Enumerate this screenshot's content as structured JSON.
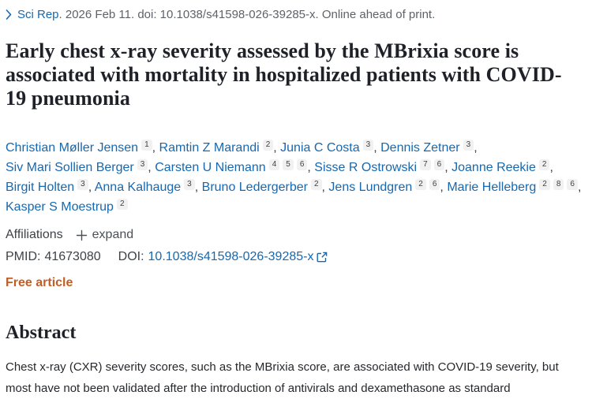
{
  "journal_bar": {
    "journal_link": "Sci Rep",
    "citation_text": ". 2026 Feb 11. doi: 10.1038/s41598-026-39285-x. Online ahead of print."
  },
  "title": "Early chest x-ray severity assessed by the MBrixia score is associated with mortality in hospitalized patients with COVID-19 pneumonia",
  "authors": [
    {
      "name": "Christian Møller Jensen",
      "sups": [
        "1"
      ]
    },
    {
      "name": "Ramtin Z Marandi",
      "sups": [
        "2"
      ]
    },
    {
      "name": "Junia C Costa",
      "sups": [
        "3"
      ]
    },
    {
      "name": "Dennis Zetner",
      "sups": [
        "3"
      ]
    },
    {
      "name": "Siv Mari Sollien Berger",
      "sups": [
        "3"
      ]
    },
    {
      "name": "Carsten U Niemann",
      "sups": [
        "4",
        "5",
        "6"
      ]
    },
    {
      "name": "Sisse R Ostrowski",
      "sups": [
        "7",
        "6"
      ]
    },
    {
      "name": "Joanne Reekie",
      "sups": [
        "2"
      ]
    },
    {
      "name": "Birgit Holten",
      "sups": [
        "3"
      ]
    },
    {
      "name": "Anna Kalhauge",
      "sups": [
        "3"
      ]
    },
    {
      "name": "Bruno Ledergerber",
      "sups": [
        "2"
      ]
    },
    {
      "name": "Jens Lundgren",
      "sups": [
        "2",
        "6"
      ]
    },
    {
      "name": "Marie Helleberg",
      "sups": [
        "2",
        "8",
        "6"
      ]
    },
    {
      "name": "Kasper S Moestrup",
      "sups": [
        "2"
      ]
    }
  ],
  "affiliations": {
    "label": "Affiliations",
    "expand_label": "expand"
  },
  "identifiers": {
    "pmid_label": "PMID:",
    "pmid": "41673080",
    "doi_label": "DOI:",
    "doi": "10.1038/s41598-026-39285-x"
  },
  "free_article_label": "Free article",
  "abstract": {
    "heading": "Abstract",
    "text": "Chest x-ray (CXR) severity scores, such as the MBrixia score, are associated with COVID-19 severity, but most have not been validated after the introduction of antivirals and dexamethasone as standard"
  },
  "colors": {
    "link_blue": "#1768af",
    "citation_gray": "#5d6369",
    "title_dark": "#1e2228",
    "free_article_orange": "#bf5e26",
    "superscript_badge_bg": "#f1f1f2"
  }
}
